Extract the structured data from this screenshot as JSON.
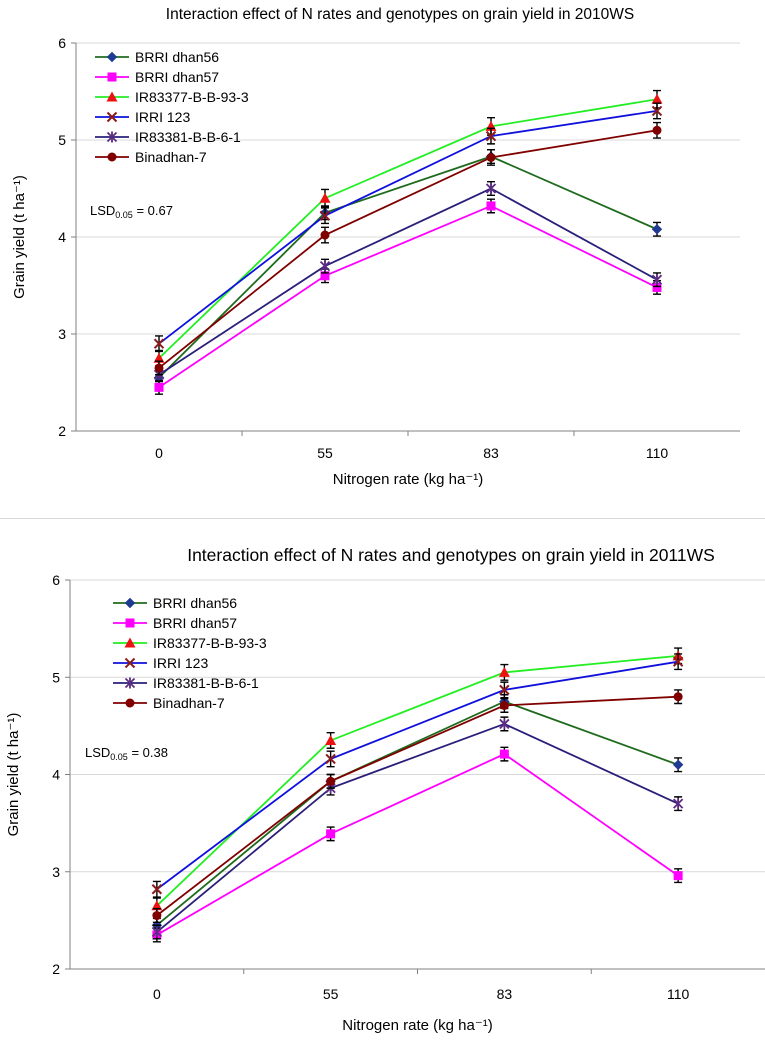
{
  "chart_data": [
    {
      "type": "line",
      "title": "Interaction effect of N rates and genotypes on grain yield in 2010WS",
      "xlabel": "Nitrogen rate (kg ha⁻¹)",
      "ylabel": "Grain yield (t ha⁻¹)",
      "categories": [
        "0",
        "55",
        "83",
        "110"
      ],
      "ylim": [
        2,
        6
      ],
      "yticks": [
        "2",
        "3",
        "4",
        "5",
        "6"
      ],
      "grid": true,
      "legend_position": "top-left",
      "annotation": "LSD0.05 = 0.67",
      "series": [
        {
          "name": "BRRI dhan56",
          "color": "#1e6b1e",
          "marker": "diamond",
          "marker_color": "#1f3a93",
          "values": [
            2.55,
            4.25,
            4.83,
            4.08
          ],
          "errors": [
            0.07,
            0.07,
            0.07,
            0.07
          ]
        },
        {
          "name": "BRRI dhan57",
          "color": "#ff00ff",
          "marker": "square",
          "marker_color": "#ff00ff",
          "values": [
            2.45,
            3.6,
            4.32,
            3.48
          ],
          "errors": [
            0.07,
            0.07,
            0.07,
            0.07
          ]
        },
        {
          "name": "IR83377-B-B-93-3",
          "color": "#22ee22",
          "marker": "triangle",
          "marker_color": "#ee1111",
          "values": [
            2.75,
            4.4,
            5.14,
            5.42
          ],
          "errors": [
            0.08,
            0.09,
            0.09,
            0.09
          ]
        },
        {
          "name": "IRRI 123",
          "color": "#1010dd",
          "marker": "x",
          "marker_color": "#8b1a1a",
          "values": [
            2.9,
            4.22,
            5.04,
            5.3
          ],
          "errors": [
            0.08,
            0.08,
            0.08,
            0.08
          ]
        },
        {
          "name": "IR83381-B-B-6-1",
          "color": "#2a1f7a",
          "marker": "star",
          "marker_color": "#5b2c82",
          "values": [
            2.58,
            3.7,
            4.5,
            3.56
          ],
          "errors": [
            0.07,
            0.07,
            0.07,
            0.07
          ]
        },
        {
          "name": "Binadhan-7",
          "color": "#800000",
          "marker": "circle",
          "marker_color": "#800000",
          "values": [
            2.65,
            4.02,
            4.82,
            5.1
          ],
          "errors": [
            0.07,
            0.08,
            0.08,
            0.08
          ]
        }
      ]
    },
    {
      "type": "line",
      "title": "Interaction effect of N rates and genotypes on grain yield in 2011WS",
      "xlabel": "Nitrogen rate (kg ha⁻¹)",
      "ylabel": "Grain yield (t ha⁻¹)",
      "categories": [
        "0",
        "55",
        "83",
        "110"
      ],
      "ylim": [
        2,
        6
      ],
      "yticks": [
        "2",
        "3",
        "4",
        "5",
        "6"
      ],
      "grid": true,
      "legend_position": "top-left",
      "annotation": "LSD0.05 = 0.38",
      "series": [
        {
          "name": "BRRI dhan56",
          "color": "#1e6b1e",
          "marker": "diamond",
          "marker_color": "#1f3a93",
          "values": [
            2.45,
            3.93,
            4.75,
            4.1
          ],
          "errors": [
            0.07,
            0.07,
            0.07,
            0.07
          ]
        },
        {
          "name": "BRRI dhan57",
          "color": "#ff00ff",
          "marker": "square",
          "marker_color": "#ff00ff",
          "values": [
            2.35,
            3.39,
            4.21,
            2.96
          ],
          "errors": [
            0.07,
            0.07,
            0.07,
            0.07
          ]
        },
        {
          "name": "IR83377-B-B-93-3",
          "color": "#22ee22",
          "marker": "triangle",
          "marker_color": "#ee1111",
          "values": [
            2.65,
            4.35,
            5.05,
            5.22
          ],
          "errors": [
            0.08,
            0.08,
            0.08,
            0.08
          ]
        },
        {
          "name": "IRRI 123",
          "color": "#1010dd",
          "marker": "x",
          "marker_color": "#8b1a1a",
          "values": [
            2.82,
            4.16,
            4.87,
            5.16
          ],
          "errors": [
            0.08,
            0.08,
            0.08,
            0.08
          ]
        },
        {
          "name": "IR83381-B-B-6-1",
          "color": "#2a1f7a",
          "marker": "star",
          "marker_color": "#5b2c82",
          "values": [
            2.38,
            3.86,
            4.52,
            3.7
          ],
          "errors": [
            0.07,
            0.07,
            0.07,
            0.07
          ]
        },
        {
          "name": "Binadhan-7",
          "color": "#800000",
          "marker": "circle",
          "marker_color": "#800000",
          "values": [
            2.55,
            3.93,
            4.71,
            4.8
          ],
          "errors": [
            0.07,
            0.07,
            0.07,
            0.07
          ]
        }
      ]
    }
  ]
}
